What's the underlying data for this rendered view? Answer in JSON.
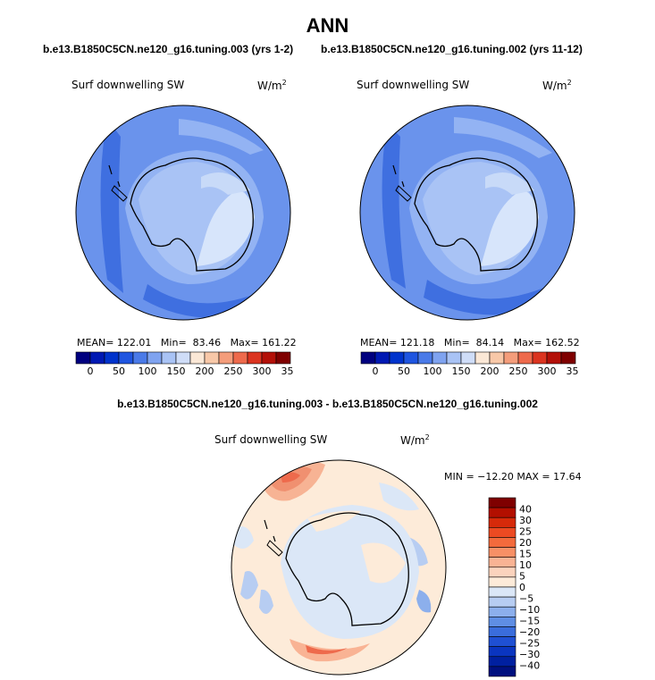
{
  "title": "ANN",
  "panels": [
    {
      "case_label": "b.e13.B1850C5CN.ne120_g16.tuning.003 (yrs 1-2)",
      "variable": "Surf downwelling SW",
      "units": "W/m",
      "units_exp": "2",
      "stats": {
        "mean_label": "MEAN=",
        "mean": "122.01",
        "min_label": "Min=",
        "min": "83.46",
        "max_label": "Max=",
        "max": "161.22"
      }
    },
    {
      "case_label": "b.e13.B1850C5CN.ne120_g16.tuning.002 (yrs 11-12)",
      "variable": "Surf downwelling SW",
      "units": "W/m",
      "units_exp": "2",
      "stats": {
        "mean_label": "MEAN=",
        "mean": "121.18",
        "min_label": "Min=",
        "min": "84.14",
        "max_label": "Max=",
        "max": "162.52"
      }
    }
  ],
  "abs_colorbar": {
    "colors": [
      "#00007f",
      "#0019b3",
      "#0033cc",
      "#1f55e0",
      "#4a7ae8",
      "#7fa3f0",
      "#a9c3f5",
      "#cfddf8",
      "#fbe8d6",
      "#f8c8a8",
      "#f49d7b",
      "#ee6a4c",
      "#db3420",
      "#b31008",
      "#7f0000"
    ],
    "ticks": [
      "0",
      "50",
      "100",
      "150",
      "200",
      "250",
      "300",
      "350"
    ]
  },
  "diff": {
    "title": "b.e13.B1850C5CN.ne120_g16.tuning.003 - b.e13.B1850C5CN.ne120_g16.tuning.002",
    "variable": "Surf downwelling SW",
    "units": "W/m",
    "units_exp": "2",
    "minmax": "MIN = −12.20 MAX =  17.64",
    "colors": [
      "#7f0000",
      "#b30f00",
      "#d62a0a",
      "#ec4a22",
      "#f36a3c",
      "#f79066",
      "#f9b394",
      "#fbd3bd",
      "#fdebd9",
      "#dbe7f7",
      "#b7cdf2",
      "#8cafec",
      "#5f8ee4",
      "#3a6ddc",
      "#1f50d3",
      "#0a35c0",
      "#0020a0",
      "#00107f"
    ],
    "tick_labels": [
      "40",
      "30",
      "25",
      "20",
      "15",
      "10",
      "5",
      "0",
      "−5",
      "−10",
      "−15",
      "−20",
      "−25",
      "−30",
      "−40"
    ]
  }
}
